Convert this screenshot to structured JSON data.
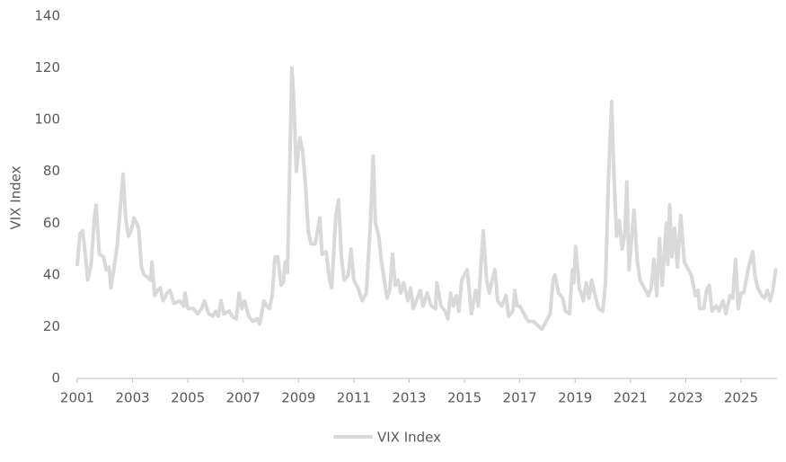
{
  "chart_data": {
    "type": "line",
    "y_label": "VIX Index",
    "x": [
      2001,
      2001.1,
      2001.2,
      2001.3,
      2001.38,
      2001.5,
      2001.62,
      2001.68,
      2001.8,
      2001.95,
      2002.05,
      2002.15,
      2002.22,
      2002.32,
      2002.45,
      2002.55,
      2002.66,
      2002.75,
      2002.85,
      2002.95,
      2003.05,
      2003.15,
      2003.22,
      2003.32,
      2003.42,
      2003.55,
      2003.65,
      2003.7,
      2003.8,
      2003.9,
      2004.0,
      2004.1,
      2004.25,
      2004.35,
      2004.5,
      2004.7,
      2004.85,
      2004.9,
      2005.0,
      2005.2,
      2005.35,
      2005.5,
      2005.6,
      2005.75,
      2005.9,
      2006.0,
      2006.1,
      2006.2,
      2006.3,
      2006.5,
      2006.6,
      2006.75,
      2006.85,
      2006.95,
      2007.05,
      2007.2,
      2007.35,
      2007.5,
      2007.6,
      2007.75,
      2007.85,
      2007.95,
      2008.05,
      2008.15,
      2008.25,
      2008.37,
      2008.45,
      2008.52,
      2008.6,
      2008.76,
      2008.82,
      2008.92,
      2009.05,
      2009.15,
      2009.25,
      2009.35,
      2009.45,
      2009.6,
      2009.77,
      2009.85,
      2010.0,
      2010.12,
      2010.2,
      2010.35,
      2010.45,
      2010.55,
      2010.65,
      2010.8,
      2010.9,
      2011.0,
      2011.15,
      2011.3,
      2011.45,
      2011.6,
      2011.7,
      2011.78,
      2011.9,
      2012.0,
      2012.1,
      2012.2,
      2012.3,
      2012.4,
      2012.5,
      2012.6,
      2012.7,
      2012.8,
      2012.95,
      2013.05,
      2013.15,
      2013.3,
      2013.4,
      2013.5,
      2013.65,
      2013.8,
      2013.95,
      2014.0,
      2014.15,
      2014.3,
      2014.4,
      2014.5,
      2014.6,
      2014.7,
      2014.8,
      2014.9,
      2015.1,
      2015.25,
      2015.4,
      2015.5,
      2015.68,
      2015.8,
      2015.9,
      2016.0,
      2016.1,
      2016.2,
      2016.35,
      2016.5,
      2016.6,
      2016.75,
      2016.82,
      2016.9,
      2017.0,
      2017.15,
      2017.3,
      2017.5,
      2017.6,
      2017.8,
      2017.95,
      2018.1,
      2018.2,
      2018.27,
      2018.4,
      2018.55,
      2018.65,
      2018.8,
      2018.9,
      2018.95,
      2019.02,
      2019.15,
      2019.3,
      2019.4,
      2019.5,
      2019.6,
      2019.7,
      2019.85,
      2020.0,
      2020.1,
      2020.2,
      2020.32,
      2020.4,
      2020.5,
      2020.6,
      2020.7,
      2020.8,
      2020.87,
      2020.95,
      2021.13,
      2021.25,
      2021.35,
      2021.5,
      2021.65,
      2021.75,
      2021.85,
      2021.95,
      2022.05,
      2022.15,
      2022.3,
      2022.35,
      2022.42,
      2022.5,
      2022.6,
      2022.7,
      2022.82,
      2022.95,
      2023.05,
      2023.2,
      2023.35,
      2023.45,
      2023.5,
      2023.65,
      2023.75,
      2023.85,
      2023.95,
      2024.1,
      2024.2,
      2024.35,
      2024.45,
      2024.6,
      2024.7,
      2024.8,
      2024.9,
      2025.0,
      2025.1,
      2025.25,
      2025.42,
      2025.5,
      2025.6,
      2025.75,
      2025.85,
      2025.95,
      2026.05,
      2026.15,
      2026.25
    ],
    "series": [
      {
        "name": "VIX Index",
        "color": "#d9d9d9",
        "values": [
          44,
          56,
          57,
          47,
          38,
          44,
          62,
          67,
          48,
          47,
          42,
          43,
          35,
          42,
          52,
          65,
          79,
          62,
          55,
          57,
          62,
          60,
          58,
          43,
          40,
          39,
          38,
          45,
          32,
          34,
          35,
          30,
          33,
          34,
          29,
          30,
          28,
          33,
          27,
          27,
          25,
          27,
          30,
          25,
          24,
          26,
          24,
          30,
          25,
          26,
          24,
          23,
          33,
          27,
          30,
          24,
          22,
          23,
          21,
          30,
          28,
          27,
          32,
          47,
          47,
          36,
          37,
          45,
          41,
          120,
          110,
          80,
          93,
          88,
          75,
          57,
          52,
          52,
          62,
          48,
          49,
          38,
          35,
          63,
          69,
          47,
          38,
          40,
          50,
          38,
          35,
          30,
          33,
          60,
          86,
          60,
          55,
          45,
          38,
          31,
          34,
          48,
          36,
          38,
          33,
          37,
          30,
          35,
          27,
          31,
          34,
          28,
          33,
          28,
          27,
          37,
          28,
          26,
          23,
          33,
          28,
          32,
          26,
          38,
          42,
          25,
          34,
          28,
          57,
          38,
          33,
          38,
          42,
          30,
          28,
          32,
          24,
          26,
          34,
          28,
          28,
          25,
          22,
          22,
          21,
          19,
          22,
          25,
          38,
          40,
          33,
          31,
          26,
          25,
          42,
          37,
          51,
          35,
          30,
          37,
          31,
          38,
          33,
          27,
          26,
          37,
          75,
          107,
          80,
          55,
          61,
          50,
          56,
          76,
          42,
          65,
          45,
          38,
          35,
          32,
          35,
          46,
          32,
          54,
          36,
          60,
          44,
          67,
          47,
          58,
          43,
          63,
          45,
          43,
          40,
          32,
          34,
          27,
          27,
          34,
          36,
          26,
          28,
          26,
          30,
          25,
          32,
          31,
          46,
          27,
          33,
          33,
          42,
          49,
          40,
          35,
          32,
          31,
          34,
          30,
          34,
          42
        ]
      }
    ],
    "xlim": [
      2001,
      2026.3
    ],
    "xticks": [
      2001,
      2003,
      2005,
      2007,
      2009,
      2011,
      2013,
      2015,
      2017,
      2019,
      2021,
      2023,
      2025
    ],
    "ylim": [
      0,
      140
    ],
    "yticks": [
      0,
      20,
      40,
      60,
      80,
      100,
      120,
      140
    ],
    "grid": false,
    "legend": "bottom"
  }
}
